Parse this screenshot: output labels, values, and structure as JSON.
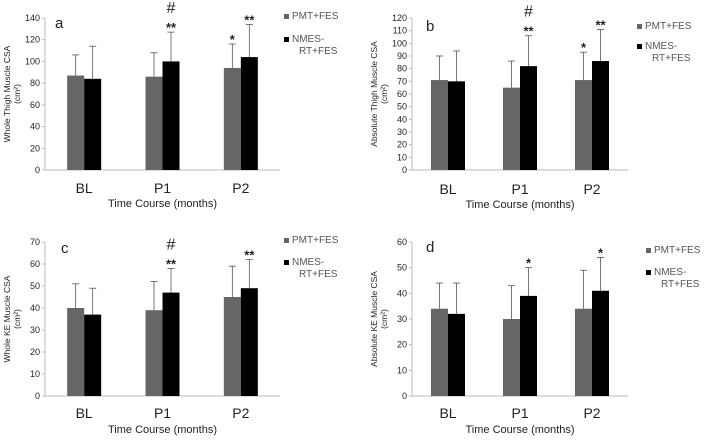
{
  "colors": {
    "pmt": "#666666",
    "nmes": "#000000",
    "axis": "#bbbbbb",
    "text": "#222222"
  },
  "chart_data": [
    {
      "panel": "a",
      "type": "bar",
      "categories": [
        "BL",
        "P1",
        "P2"
      ],
      "xlabel": "Time Course (months)",
      "ylabel": [
        "Whole Thigh Muscle CSA",
        "(cm²)"
      ],
      "ylim": [
        0,
        140
      ],
      "yticks": [
        0,
        20,
        40,
        60,
        80,
        100,
        120,
        140
      ],
      "legend": [
        "PMT+FES",
        [
          "NMES-",
          "RT+FES"
        ]
      ],
      "series": [
        {
          "name": "PMT+FES",
          "values": [
            87,
            86,
            94
          ],
          "errors": [
            19,
            22,
            22
          ]
        },
        {
          "name": "NMES-RT+FES",
          "values": [
            84,
            100,
            104
          ],
          "errors": [
            30,
            27,
            30
          ]
        }
      ],
      "annotations": [
        {
          "category": 1,
          "series": 1,
          "text": "**"
        },
        {
          "category": 1,
          "series": 1,
          "text": "#"
        },
        {
          "category": 2,
          "series": 0,
          "text": "*"
        },
        {
          "category": 2,
          "series": 1,
          "text": "**"
        }
      ]
    },
    {
      "panel": "b",
      "type": "bar",
      "categories": [
        "BL",
        "P1",
        "P2"
      ],
      "xlabel": "Time Course (months)",
      "ylabel": [
        "Absolute Thigh Muscle CSA",
        "(cm²)"
      ],
      "ylim": [
        0,
        120
      ],
      "yticks": [
        0,
        10,
        20,
        30,
        40,
        50,
        60,
        70,
        80,
        90,
        100,
        110,
        120
      ],
      "legend": [
        "PMT+FES",
        [
          "NMES-",
          "RT+FES"
        ]
      ],
      "series": [
        {
          "name": "PMT+FES",
          "values": [
            71,
            65,
            71
          ],
          "errors": [
            19,
            21,
            22
          ]
        },
        {
          "name": "NMES-RT+FES",
          "values": [
            70,
            82,
            86
          ],
          "errors": [
            24,
            24,
            25
          ]
        }
      ],
      "annotations": [
        {
          "category": 1,
          "series": 1,
          "text": "**"
        },
        {
          "category": 1,
          "series": 1,
          "text": "#"
        },
        {
          "category": 2,
          "series": 0,
          "text": "*"
        },
        {
          "category": 2,
          "series": 1,
          "text": "**"
        }
      ]
    },
    {
      "panel": "c",
      "type": "bar",
      "categories": [
        "BL",
        "P1",
        "P2"
      ],
      "xlabel": "Time Course (months)",
      "ylabel": [
        "Whole KE Muscle CSA",
        "(cm²)"
      ],
      "ylim": [
        0,
        70
      ],
      "yticks": [
        0,
        10,
        20,
        30,
        40,
        50,
        60,
        70
      ],
      "legend": [
        "PMT+FES",
        [
          "NMES-",
          "RT+FES"
        ]
      ],
      "series": [
        {
          "name": "PMT+FES",
          "values": [
            40,
            39,
            45
          ],
          "errors": [
            11,
            13,
            14
          ]
        },
        {
          "name": "NMES-RT+FES",
          "values": [
            37,
            47,
            49
          ],
          "errors": [
            12,
            11,
            13
          ]
        }
      ],
      "annotations": [
        {
          "category": 1,
          "series": 1,
          "text": "**"
        },
        {
          "category": 1,
          "series": 1,
          "text": "#"
        },
        {
          "category": 2,
          "series": 1,
          "text": "**"
        }
      ]
    },
    {
      "panel": "d",
      "type": "bar",
      "categories": [
        "BL",
        "P1",
        "P2"
      ],
      "xlabel": "Time Course (months)",
      "ylabel": [
        "Absolute KE Muscle CSA",
        "(cm²)"
      ],
      "ylim": [
        0,
        60
      ],
      "yticks": [
        0,
        10,
        20,
        30,
        40,
        50,
        60
      ],
      "legend": [
        "PMT+FES",
        [
          "NMES-",
          "RT+FES"
        ]
      ],
      "series": [
        {
          "name": "PMT+FES",
          "values": [
            34,
            30,
            34
          ],
          "errors": [
            10,
            13,
            15
          ]
        },
        {
          "name": "NMES-RT+FES",
          "values": [
            32,
            39,
            41
          ],
          "errors": [
            12,
            11,
            13
          ]
        }
      ],
      "annotations": [
        {
          "category": 1,
          "series": 1,
          "text": "*"
        },
        {
          "category": 2,
          "series": 1,
          "text": "*"
        }
      ]
    }
  ]
}
